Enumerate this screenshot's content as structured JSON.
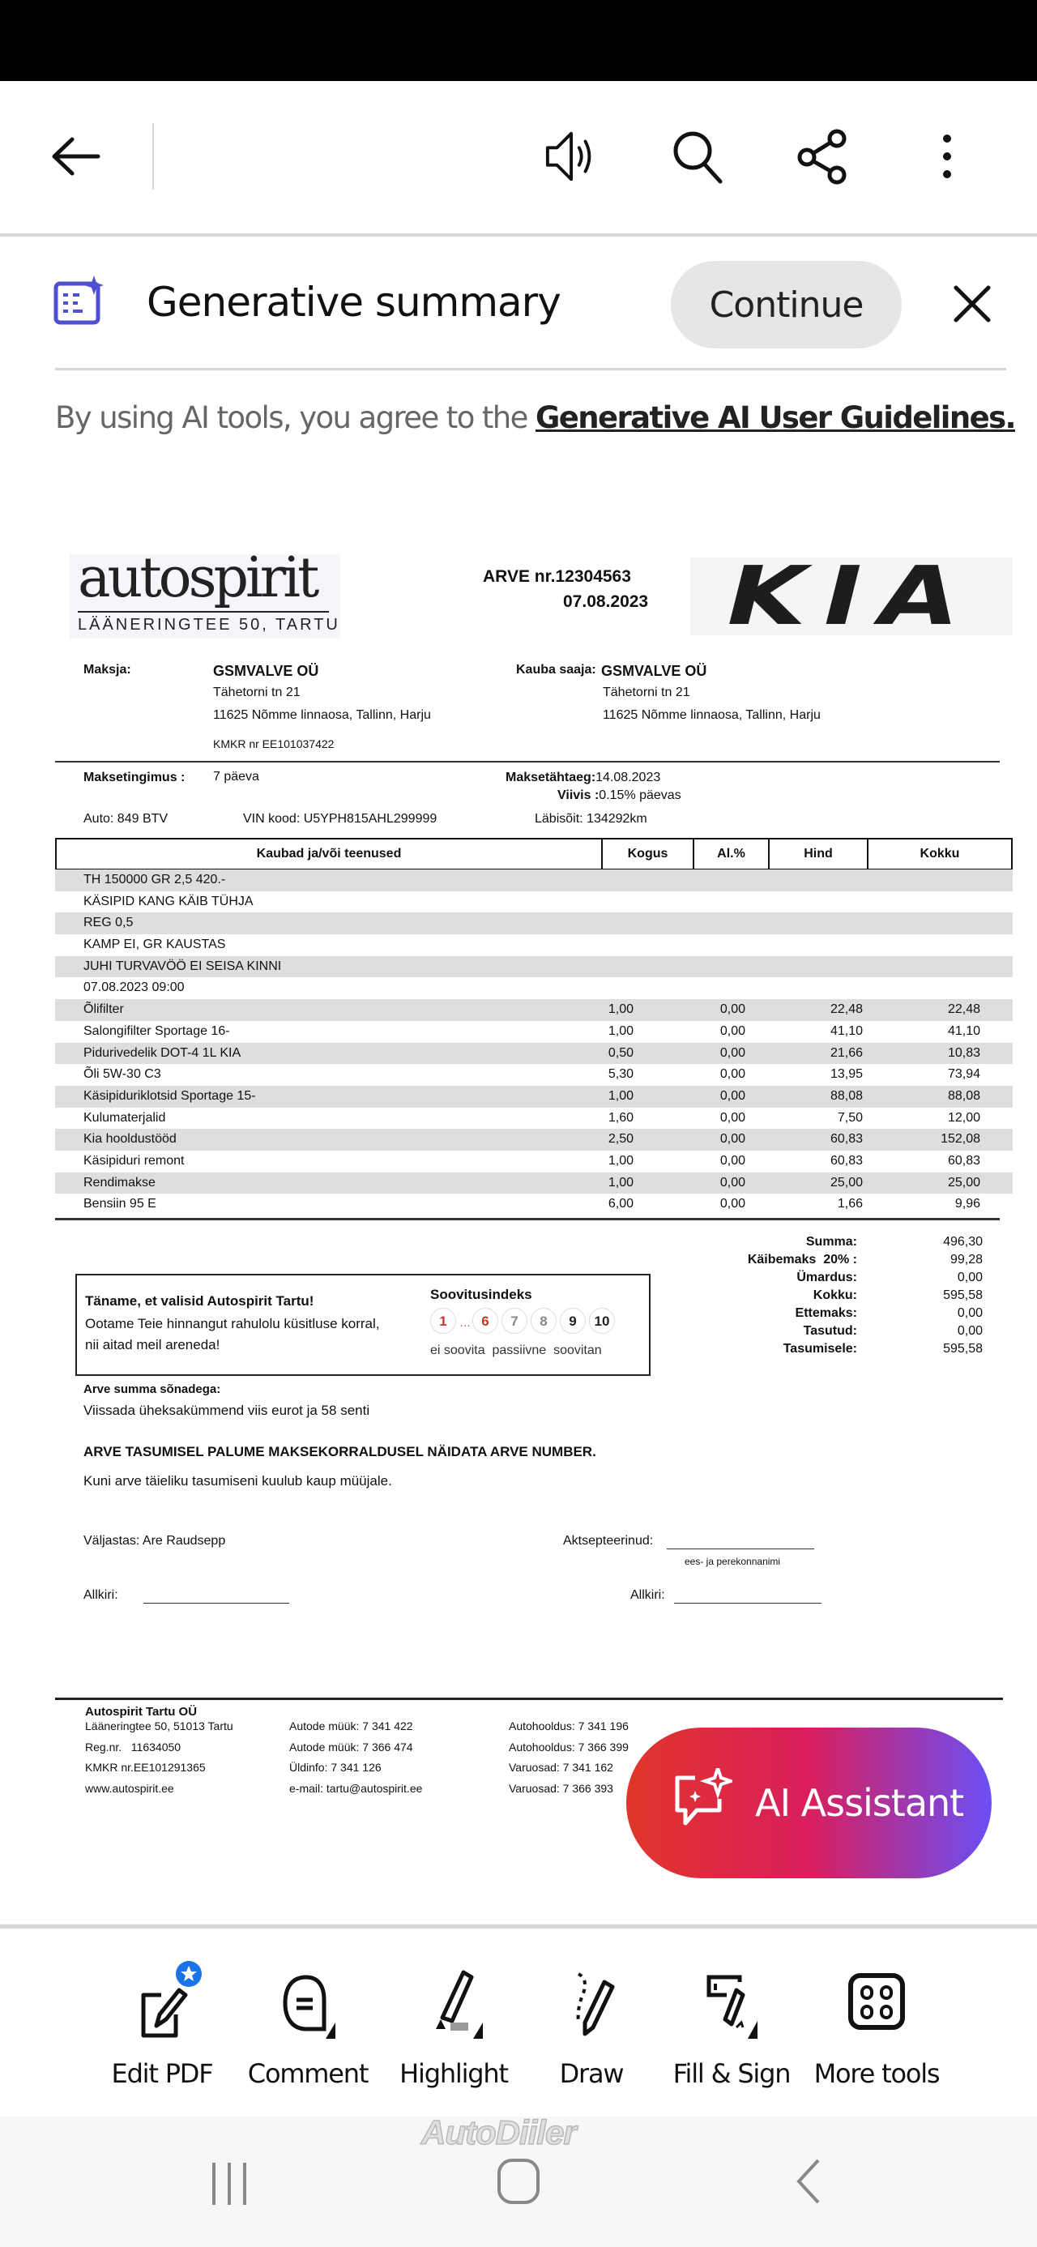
{
  "toolbar": {
    "icons": [
      "back-arrow-icon",
      "read-aloud-icon",
      "search-icon",
      "share-icon",
      "more-vert-icon"
    ]
  },
  "summary": {
    "title": "Generative summary",
    "continue_label": "Continue",
    "disclaimer_prefix": "By using AI tools, you agree to the ",
    "disclaimer_link": "Generative AI User Guidelines.",
    "accent": "#4f4fd1"
  },
  "invoice": {
    "seller_logo": "autospirit",
    "seller_logo_address": "LÄÄNERINGTEE 50, TARTU",
    "brand_logo": "KIA",
    "number": "ARVE nr.12304563",
    "date": "07.08.2023",
    "payer_label": "Maksja:",
    "payer_name": "GSMVALVE OÜ",
    "payer_street": "Tähetorni tn 21",
    "payer_city": "11625 Nõmme linnaosa, Tallinn, Harju",
    "payer_kmkr": "KMKR nr EE101037422",
    "receiver_label": "Kauba saaja:",
    "receiver_name": "GSMVALVE OÜ",
    "receiver_street": "Tähetorni tn 21",
    "receiver_city": "11625 Nõmme linnaosa, Tallinn, Harju",
    "terms_label": "Maksetingimus :",
    "terms_value": "7 päeva",
    "due_label": "Maksetähtaeg:",
    "due_value": "14.08.2023",
    "penalty_label": "Viivis :",
    "penalty_value": "0.15% päevas",
    "car": "Auto: 849 BTV",
    "vin": "VIN kood: U5YPH815AHL299999",
    "mileage": "Läbisõit: 134292km",
    "columns": [
      "Kaubad ja/või teenused",
      "Kogus",
      "Al.%",
      "Hind",
      "Kokku"
    ],
    "items": [
      [
        "TH 150000 GR 2,5 420.-",
        "",
        "",
        "",
        ""
      ],
      [
        "KÄSIPID KANG KÄIB TÜHJA",
        "",
        "",
        "",
        ""
      ],
      [
        "REG 0,5",
        "",
        "",
        "",
        ""
      ],
      [
        "KAMP EI, GR KAUSTAS",
        "",
        "",
        "",
        ""
      ],
      [
        "JUHI TURVAVÖÖ EI SEISA KINNI",
        "",
        "",
        "",
        ""
      ],
      [
        "07.08.2023 09:00",
        "",
        "",
        "",
        ""
      ],
      [
        "Õlifilter",
        "1,00",
        "0,00",
        "22,48",
        "22,48"
      ],
      [
        "Salongifilter Sportage 16-",
        "1,00",
        "0,00",
        "41,10",
        "41,10"
      ],
      [
        "Pidurivedelik DOT-4 1L KIA",
        "0,50",
        "0,00",
        "21,66",
        "10,83"
      ],
      [
        "Õli 5W-30 C3",
        "5,30",
        "0,00",
        "13,95",
        "73,94"
      ],
      [
        "Käsipiduriklotsid Sportage 15-",
        "1,00",
        "0,00",
        "88,08",
        "88,08"
      ],
      [
        "Kulumaterjalid",
        "1,60",
        "0,00",
        "7,50",
        "12,00"
      ],
      [
        "Kia hooldustööd",
        "2,50",
        "0,00",
        "60,83",
        "152,08"
      ],
      [
        "Käsipiduri remont",
        "1,00",
        "0,00",
        "60,83",
        "60,83"
      ],
      [
        "Rendimakse",
        "1,00",
        "0,00",
        "25,00",
        "25,00"
      ],
      [
        "Bensiin 95 E",
        "6,00",
        "0,00",
        "1,66",
        "9,96"
      ]
    ],
    "totals": [
      {
        "label": "Summa:",
        "value": "496,30"
      },
      {
        "label": "Käibemaks  20% :",
        "value": "99,28"
      },
      {
        "label": "Ümardus:",
        "value": "0,00"
      },
      {
        "label": "Kokku:",
        "value": "595,58"
      },
      {
        "label": "Ettemaks:",
        "value": "0,00"
      },
      {
        "label": "Tasutud:",
        "value": "0,00"
      },
      {
        "label": "Tasumisele:",
        "value": "595,58"
      }
    ],
    "feedback": {
      "title": "Täname, et valisid Autospirit Tartu!",
      "line1": "Ootame Teie hinnangut rahulolu küsitluse korral,",
      "line2": "nii aitad meil areneda!",
      "index_title": "Soovitusindeks",
      "scores": [
        "1",
        "…",
        "6",
        "7",
        "8",
        "9",
        "10"
      ],
      "scale_labels": "ei soovita  passiivne  soovitan"
    },
    "words_label": "Arve summa sõnadega:",
    "words_value": "Viissada üheksakümmend viis eurot ja 58 senti",
    "notice": "ARVE TASUMISEL PALUME MAKSEKORRALDUSEL NÄIDATA ARVE NUMBER.",
    "ownership": "Kuni arve täieliku tasumiseni kuulub kaup müüjale.",
    "issued_by": "Väljastas: Are Raudsepp",
    "accepted_label": "Aktsepteerinud:",
    "name_hint": "ees- ja perekonnanimi",
    "signature_label": "Allkiri:",
    "footer": {
      "company": "Autospirit Tartu OÜ",
      "col1": [
        "Lääneringtee 50, 51013 Tartu",
        "Reg.nr.   11634050",
        "KMKR nr.EE101291365",
        "www.autospirit.ee"
      ],
      "col2": [
        "Autode müük: 7 341 422",
        "Autode müük: 7 366 474",
        "Üldinfo: 7 341 126",
        "e-mail: tartu@autospirit.ee"
      ],
      "col3": [
        "Autohooldus: 7 341 196",
        "Autohooldus: 7 366 399",
        "Varuosad: 7 341 162",
        "Varuosad: 7 366 393"
      ]
    }
  },
  "ai_assistant": {
    "label": "AI Assistant"
  },
  "tools": [
    {
      "label": "Edit PDF"
    },
    {
      "label": "Comment"
    },
    {
      "label": "Highlight"
    },
    {
      "label": "Draw"
    },
    {
      "label": "Fill & Sign"
    },
    {
      "label": "More tools"
    }
  ],
  "watermark": "AutoDiiler"
}
